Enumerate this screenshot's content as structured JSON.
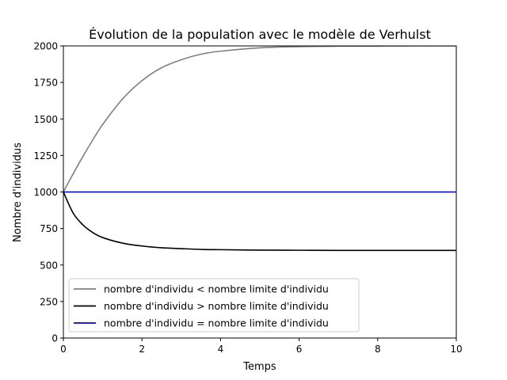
{
  "chart_data": {
    "type": "line",
    "title": "Évolution de la population avec le modèle de Verhulst",
    "xlabel": "Temps",
    "ylabel": "Nombre d'individus",
    "xlim": [
      0,
      10
    ],
    "ylim": [
      0,
      2000
    ],
    "xticks": [
      "0",
      "2",
      "4",
      "6",
      "8",
      "10"
    ],
    "yticks": [
      "0",
      "250",
      "500",
      "750",
      "1000",
      "1250",
      "1500",
      "1750",
      "2000"
    ],
    "grid": false,
    "legend_position": "lower-left",
    "x": [
      0,
      0.25,
      0.5,
      0.75,
      1,
      1.5,
      2,
      2.5,
      3,
      3.5,
      4,
      5,
      6,
      7,
      8,
      9,
      10
    ],
    "series": [
      {
        "name": "nombre d'individu < nombre limite d'individu",
        "color": "#808080",
        "values": [
          1000,
          1125,
          1245,
          1357,
          1462,
          1635,
          1762,
          1851,
          1905,
          1943,
          1964,
          1987,
          1995,
          1998,
          1999,
          2000,
          2000
        ]
      },
      {
        "name": "nombre d'individu > nombre limite d'individu",
        "color": "#000000",
        "values": [
          1000,
          855,
          774,
          722,
          688,
          650,
          630,
          618,
          612,
          607,
          605,
          602,
          601,
          600,
          600,
          600,
          600
        ]
      },
      {
        "name": "nombre d'individu = nombre limite d'individu",
        "color": "#0000cc",
        "values": [
          1000,
          1000,
          1000,
          1000,
          1000,
          1000,
          1000,
          1000,
          1000,
          1000,
          1000,
          1000,
          1000,
          1000,
          1000,
          1000,
          1000
        ]
      }
    ]
  }
}
